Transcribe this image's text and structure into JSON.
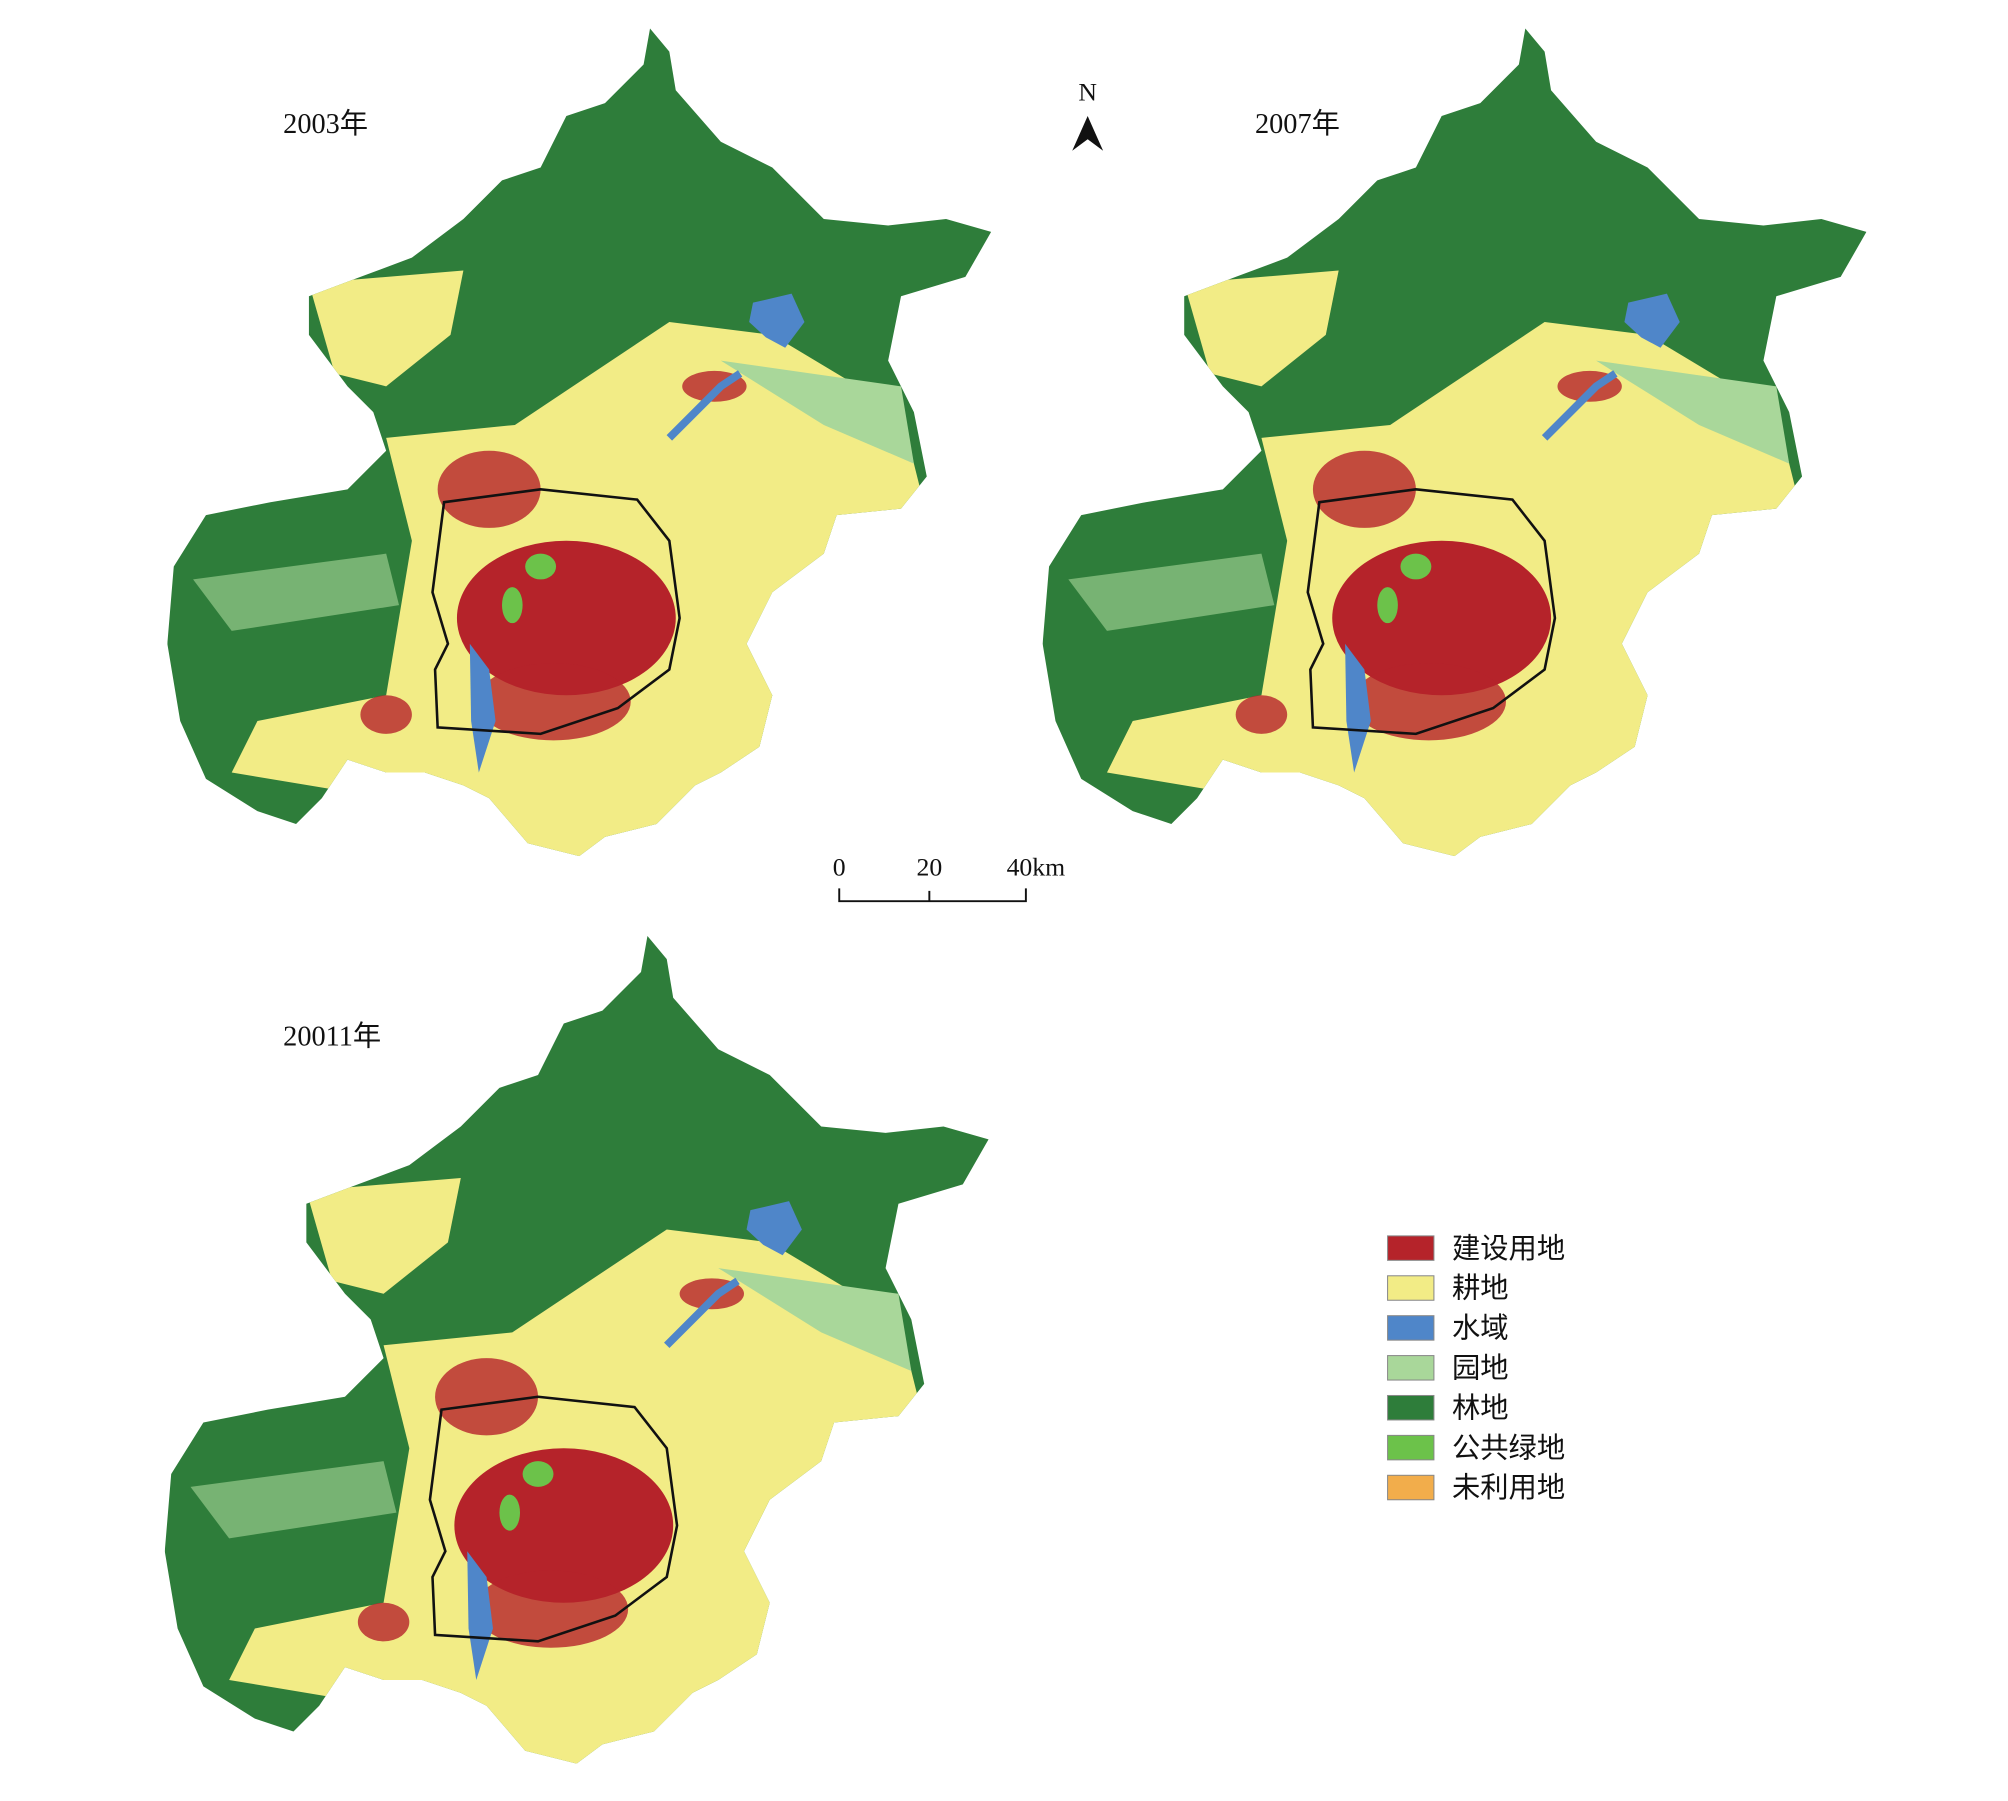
{
  "maps": [
    {
      "title": "2003年"
    },
    {
      "title": "2007年"
    },
    {
      "title": "20011年"
    }
  ],
  "north_arrow": {
    "label": "N"
  },
  "scale_bar": {
    "labels": [
      "0",
      "20",
      "40km"
    ]
  },
  "legend": [
    {
      "label": "建设用地",
      "color": "#b5232a"
    },
    {
      "label": "耕地",
      "color": "#f2ec86"
    },
    {
      "label": "水域",
      "color": "#4f86c9"
    },
    {
      "label": "园地",
      "color": "#a9d79a"
    },
    {
      "label": "林地",
      "color": "#2e7d3a"
    },
    {
      "label": "公共绿地",
      "color": "#6cc24a"
    },
    {
      "label": "未利用地",
      "color": "#f2ad4b"
    }
  ]
}
